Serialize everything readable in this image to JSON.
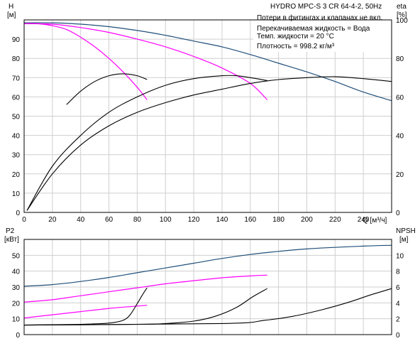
{
  "chart_data": [
    {
      "type": "line",
      "panel": "QH",
      "title": "HYDRO MPC-S 3 CR 64-4-2, 50Hz",
      "annotations": [
        "Потери в фитингах и клапанах не вкл.",
        "Перекачиваемая жидкость = Вода",
        "Темп. жидкости = 20 °C",
        "Плотность = 998.2 кг/м³"
      ],
      "xlabel": "Q [м³/ч]",
      "xlim": [
        0,
        260
      ],
      "xticks": [
        0,
        20,
        40,
        60,
        80,
        100,
        120,
        140,
        160,
        180,
        200,
        220,
        240
      ],
      "left_axis": {
        "label_top": "H",
        "label_unit": "[м]",
        "ylim": [
          0,
          100
        ],
        "ticks": [
          0,
          10,
          20,
          30,
          40,
          50,
          60,
          70,
          80,
          90
        ]
      },
      "right_axis": {
        "label_top": "eta",
        "label_unit": "[%]",
        "ylim": [
          0,
          100
        ],
        "ticks": [
          0,
          20,
          40,
          60,
          80,
          100
        ]
      },
      "grid": true,
      "colors": {
        "pump3": "#1f4e79",
        "pump12": "#ff00ff",
        "eff": "#000000"
      },
      "series": [
        {
          "axis": "left",
          "color": "#1f4e79",
          "points": [
            [
              0,
              98.5
            ],
            [
              20,
              98.5
            ],
            [
              40,
              97.8
            ],
            [
              60,
              96.5
            ],
            [
              80,
              94.5
            ],
            [
              100,
              92
            ],
            [
              120,
              89
            ],
            [
              140,
              86
            ],
            [
              160,
              82
            ],
            [
              180,
              77.5
            ],
            [
              200,
              73
            ],
            [
              220,
              68
            ],
            [
              240,
              62.5
            ],
            [
              260,
              58
            ]
          ]
        },
        {
          "axis": "left",
          "color": "#ff00ff",
          "points": [
            [
              0,
              98
            ],
            [
              20,
              97.8
            ],
            [
              40,
              96
            ],
            [
              60,
              93.5
            ],
            [
              80,
              90
            ],
            [
              100,
              86
            ],
            [
              120,
              81
            ],
            [
              140,
              75
            ],
            [
              160,
              67
            ],
            [
              172,
              58.5
            ]
          ]
        },
        {
          "axis": "left",
          "color": "#ff00ff",
          "points": [
            [
              0,
              98
            ],
            [
              10,
              98
            ],
            [
              20,
              97
            ],
            [
              30,
              95
            ],
            [
              40,
              91
            ],
            [
              50,
              86
            ],
            [
              60,
              80
            ],
            [
              70,
              73
            ],
            [
              80,
              65
            ],
            [
              87,
              58.5
            ]
          ]
        },
        {
          "axis": "right",
          "color": "#000000",
          "points": [
            [
              2,
              1
            ],
            [
              20,
              20
            ],
            [
              40,
              35
            ],
            [
              60,
              45
            ],
            [
              80,
              52
            ],
            [
              100,
              57
            ],
            [
              120,
              61
            ],
            [
              140,
              64
            ],
            [
              160,
              67
            ],
            [
              180,
              69
            ],
            [
              200,
              70
            ],
            [
              220,
              70.5
            ],
            [
              240,
              69.5
            ],
            [
              260,
              68
            ]
          ]
        },
        {
          "axis": "right",
          "color": "#000000",
          "points": [
            [
              2,
              1
            ],
            [
              20,
              24
            ],
            [
              40,
              40
            ],
            [
              60,
              52
            ],
            [
              80,
              60
            ],
            [
              100,
              66
            ],
            [
              120,
              69.5
            ],
            [
              140,
              71
            ],
            [
              150,
              71
            ],
            [
              160,
              70
            ],
            [
              172,
              68.5
            ]
          ]
        },
        {
          "axis": "right",
          "color": "#000000",
          "points": [
            [
              30,
              56
            ],
            [
              40,
              63
            ],
            [
              50,
              68
            ],
            [
              60,
              71
            ],
            [
              70,
              72
            ],
            [
              80,
              71
            ],
            [
              87,
              69
            ]
          ]
        }
      ]
    },
    {
      "type": "line",
      "panel": "P2-NPSH",
      "xlim": [
        0,
        260
      ],
      "left_axis": {
        "label_top": "P2",
        "label_unit": "[кВт]",
        "ylim": [
          0,
          60
        ],
        "ticks": [
          0,
          10,
          20,
          30,
          40,
          50
        ]
      },
      "right_axis": {
        "label_top": "NPSH",
        "label_unit": "[м]",
        "ylim": [
          0,
          12
        ],
        "ticks": [
          0,
          2,
          4,
          6,
          8,
          10
        ]
      },
      "grid": true,
      "series": [
        {
          "axis": "left",
          "color": "#1f4e79",
          "points": [
            [
              0,
              30.5
            ],
            [
              20,
              31.5
            ],
            [
              40,
              33.5
            ],
            [
              60,
              36
            ],
            [
              80,
              39
            ],
            [
              100,
              42
            ],
            [
              120,
              45
            ],
            [
              140,
              48
            ],
            [
              160,
              50.5
            ],
            [
              180,
              52.5
            ],
            [
              200,
              54
            ],
            [
              220,
              55
            ],
            [
              240,
              55.8
            ],
            [
              260,
              56.3
            ]
          ]
        },
        {
          "axis": "left",
          "color": "#ff00ff",
          "points": [
            [
              0,
              20.5
            ],
            [
              20,
              22
            ],
            [
              40,
              24.5
            ],
            [
              60,
              27
            ],
            [
              80,
              29.5
            ],
            [
              100,
              32
            ],
            [
              120,
              34
            ],
            [
              140,
              35.8
            ],
            [
              160,
              37
            ],
            [
              172,
              37.5
            ]
          ]
        },
        {
          "axis": "left",
          "color": "#ff00ff",
          "points": [
            [
              0,
              10.5
            ],
            [
              20,
              12.5
            ],
            [
              40,
              14.5
            ],
            [
              60,
              16.5
            ],
            [
              80,
              18
            ],
            [
              87,
              18.5
            ]
          ]
        },
        {
          "axis": "right",
          "color": "#000000",
          "points": [
            [
              0,
              1.2
            ],
            [
              40,
              1.3
            ],
            [
              60,
              1.45
            ],
            [
              70,
              1.8
            ],
            [
              75,
              2.5
            ],
            [
              80,
              3.9
            ],
            [
              84,
              5.1
            ],
            [
              87,
              5.9
            ]
          ]
        },
        {
          "axis": "right",
          "color": "#000000",
          "points": [
            [
              0,
              1.2
            ],
            [
              80,
              1.3
            ],
            [
              100,
              1.4
            ],
            [
              120,
              1.7
            ],
            [
              135,
              2.3
            ],
            [
              150,
              3.4
            ],
            [
              162,
              4.8
            ],
            [
              172,
              5.8
            ]
          ]
        },
        {
          "axis": "right",
          "color": "#000000",
          "points": [
            [
              0,
              1.2
            ],
            [
              140,
              1.4
            ],
            [
              170,
              1.8
            ],
            [
              190,
              2.3
            ],
            [
              210,
              3.1
            ],
            [
              230,
              4.1
            ],
            [
              245,
              5.0
            ],
            [
              260,
              5.8
            ]
          ]
        }
      ]
    }
  ]
}
